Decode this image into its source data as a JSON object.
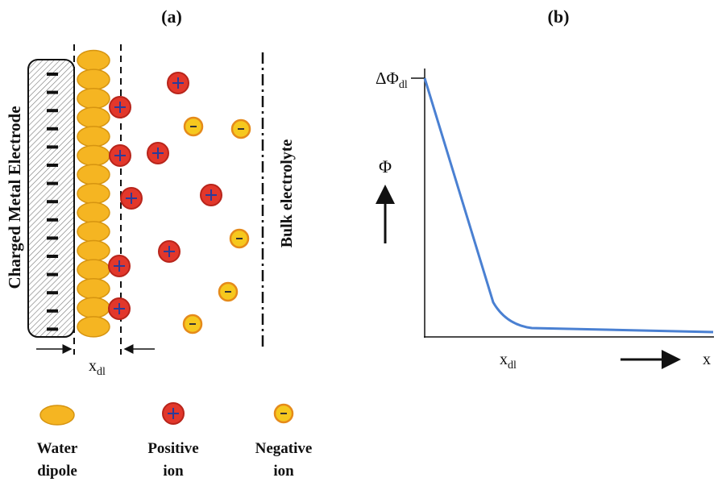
{
  "panel_a": {
    "label": "(a)",
    "electrode_label": "Charged Metal Electrode",
    "bulk_label": "Bulk electrolyte",
    "layer_width": {
      "base": "x",
      "sub": "dl"
    }
  },
  "panel_b": {
    "label": "(b)",
    "y_axis_label": "Φ",
    "x_axis_label": "x",
    "max_potential": {
      "base": "ΔΦ",
      "sub": "dl"
    },
    "layer_width": {
      "base": "x",
      "sub": "dl"
    }
  },
  "legend": [
    {
      "lines": [
        "Water",
        "dipole"
      ]
    },
    {
      "lines": [
        "Positive",
        "ion"
      ]
    },
    {
      "lines": [
        "Negative",
        "ion"
      ]
    }
  ]
}
